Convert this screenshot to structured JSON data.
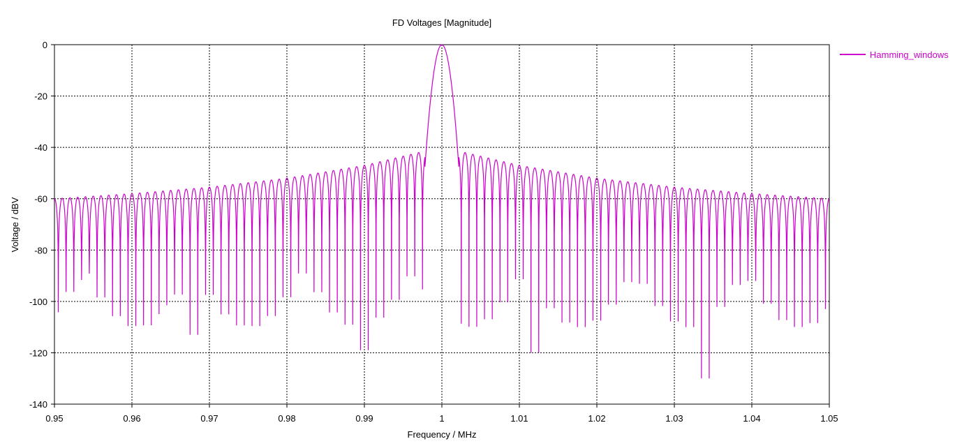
{
  "chart_data": {
    "type": "line",
    "title": "FD Voltages [Magnitude]",
    "xlabel": "Frequency / MHz",
    "ylabel": "Voltage / dBV",
    "xlim": [
      0.95,
      1.05
    ],
    "ylim": [
      -140,
      0
    ],
    "x_ticks": [
      "0.95",
      "0.96",
      "0.97",
      "0.98",
      "0.99",
      "1",
      "1.01",
      "1.02",
      "1.03",
      "1.04",
      "1.05"
    ],
    "y_ticks": [
      "0",
      "-20",
      "-40",
      "-60",
      "-80",
      "-100",
      "-120",
      "-140"
    ],
    "grid": true,
    "legend_position": "top-right",
    "series": [
      {
        "name": "Hamming_windows",
        "color": "#cc00cc",
        "description_points": {
          "peak": {
            "x": 1.0,
            "y": 0
          },
          "mainlobe_edges": [
            0.998,
            1.002
          ],
          "sidelobe_envelope": [
            {
              "x": 0.95,
              "y": -60
            },
            {
              "x": 0.96,
              "y": -58
            },
            {
              "x": 0.97,
              "y": -55.5
            },
            {
              "x": 0.98,
              "y": -52
            },
            {
              "x": 0.99,
              "y": -47
            },
            {
              "x": 0.997,
              "y": -42
            },
            {
              "x": 1.003,
              "y": -42
            },
            {
              "x": 1.01,
              "y": -47
            },
            {
              "x": 1.02,
              "y": -52
            },
            {
              "x": 1.03,
              "y": -55.5
            },
            {
              "x": 1.04,
              "y": -58
            },
            {
              "x": 1.05,
              "y": -60
            }
          ],
          "lobe_spacing_mhz": 0.001,
          "notable_nulls": [
            {
              "x": 0.957,
              "y": -118
            },
            {
              "x": 0.968,
              "y": -113
            },
            {
              "x": 0.979,
              "y": -116
            },
            {
              "x": 0.99,
              "y": -119
            },
            {
              "x": 1.012,
              "y": -120
            },
            {
              "x": 1.023,
              "y": -114
            },
            {
              "x": 1.034,
              "y": -130
            },
            {
              "x": 1.045,
              "y": -114
            }
          ]
        }
      }
    ]
  }
}
